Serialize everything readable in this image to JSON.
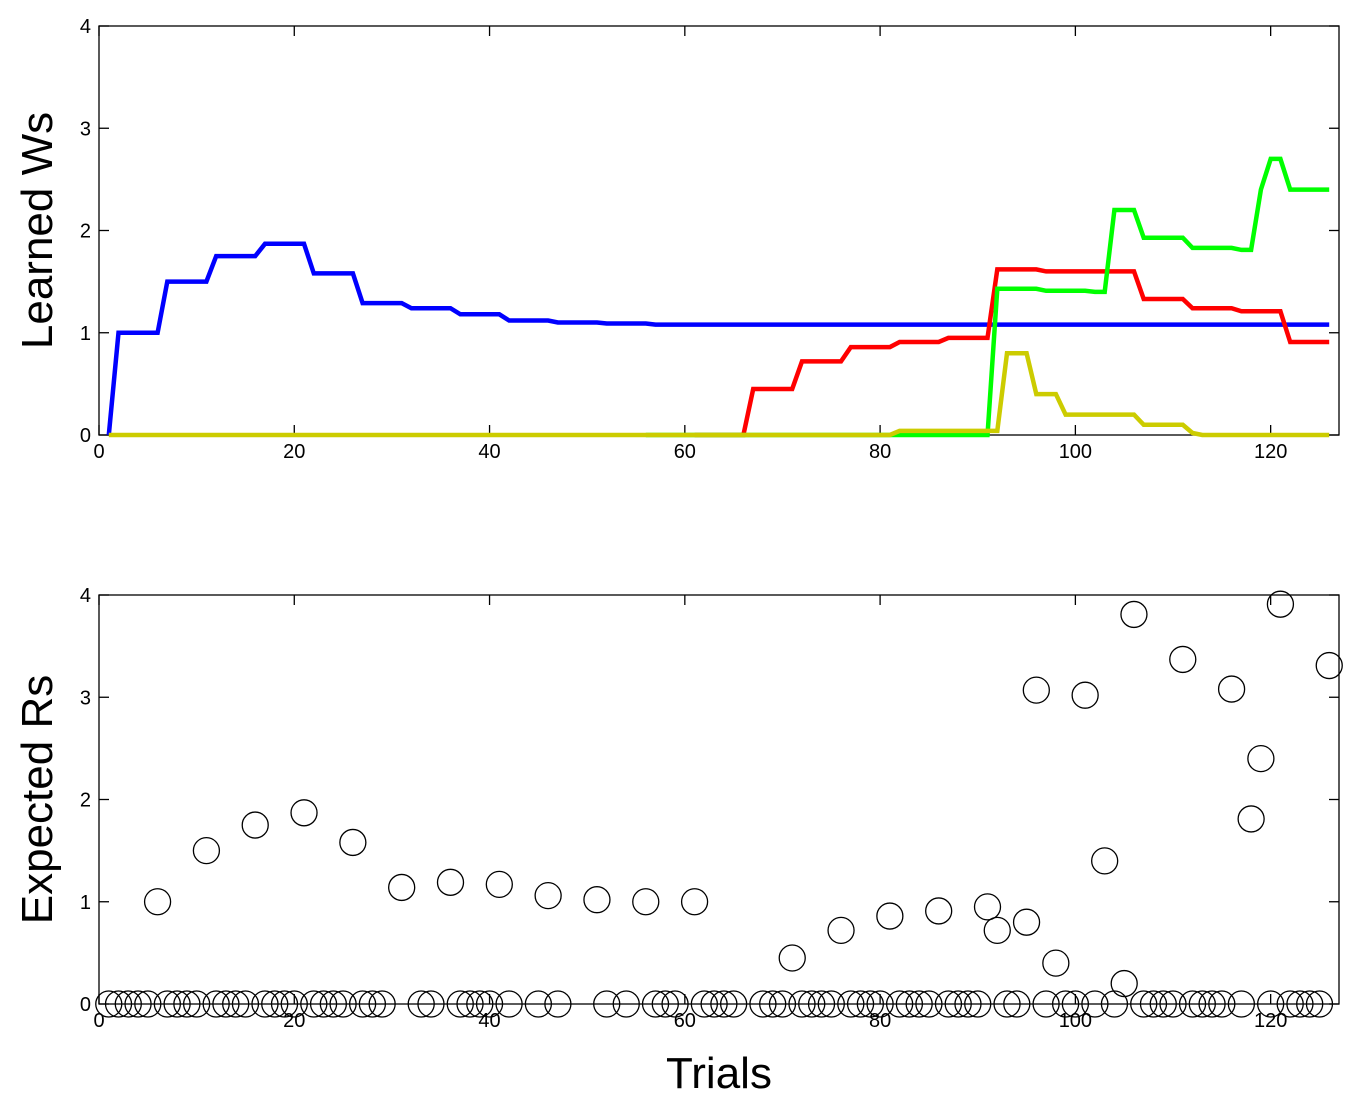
{
  "chart_data": [
    {
      "type": "line",
      "title": "",
      "xlabel": "",
      "ylabel": "Learned Ws",
      "xlim": [
        0,
        127
      ],
      "ylim": [
        0,
        4
      ],
      "xticks": [
        0,
        20,
        40,
        60,
        80,
        100,
        120
      ],
      "yticks": [
        0,
        1,
        2,
        3,
        4
      ],
      "grid": false,
      "legend": "none",
      "series": [
        {
          "color": "#0000ff",
          "points": [
            [
              1,
              0
            ],
            [
              2,
              1
            ],
            [
              6,
              1
            ],
            [
              7,
              1.5
            ],
            [
              11,
              1.5
            ],
            [
              12,
              1.75
            ],
            [
              16,
              1.75
            ],
            [
              17,
              1.87
            ],
            [
              21,
              1.87
            ],
            [
              22,
              1.58
            ],
            [
              26,
              1.58
            ],
            [
              27,
              1.29
            ],
            [
              31,
              1.29
            ],
            [
              32,
              1.24
            ],
            [
              36,
              1.24
            ],
            [
              37,
              1.18
            ],
            [
              41,
              1.18
            ],
            [
              42,
              1.12
            ],
            [
              46,
              1.12
            ],
            [
              47,
              1.1
            ],
            [
              51,
              1.1
            ],
            [
              52,
              1.09
            ],
            [
              56,
              1.09
            ],
            [
              57,
              1.08
            ],
            [
              126,
              1.08
            ]
          ]
        },
        {
          "color": "#ff0000",
          "points": [
            [
              61,
              0
            ],
            [
              66,
              0
            ],
            [
              67,
              0.45
            ],
            [
              71,
              0.45
            ],
            [
              72,
              0.72
            ],
            [
              76,
              0.72
            ],
            [
              77,
              0.86
            ],
            [
              81,
              0.86
            ],
            [
              82,
              0.91
            ],
            [
              86,
              0.91
            ],
            [
              87,
              0.95
            ],
            [
              91,
              0.95
            ],
            [
              92,
              1.62
            ],
            [
              96,
              1.62
            ],
            [
              97,
              1.6
            ],
            [
              105,
              1.6
            ],
            [
              106,
              1.6
            ],
            [
              107,
              1.33
            ],
            [
              111,
              1.33
            ],
            [
              112,
              1.24
            ],
            [
              116,
              1.24
            ],
            [
              117,
              1.21
            ],
            [
              121,
              1.21
            ],
            [
              122,
              0.91
            ],
            [
              126,
              0.91
            ]
          ]
        },
        {
          "color": "#00ff00",
          "points": [
            [
              56,
              0
            ],
            [
              56.4,
              0
            ],
            [
              61,
              0
            ],
            [
              91,
              0
            ],
            [
              92,
              1.43
            ],
            [
              96,
              1.43
            ],
            [
              97,
              1.41
            ],
            [
              101,
              1.41
            ],
            [
              102,
              1.4
            ],
            [
              103,
              1.4
            ],
            [
              104,
              2.2
            ],
            [
              106,
              2.2
            ],
            [
              107,
              1.93
            ],
            [
              111,
              1.93
            ],
            [
              112,
              1.83
            ],
            [
              116,
              1.83
            ],
            [
              117,
              1.81
            ],
            [
              118,
              1.81
            ],
            [
              119,
              2.4
            ],
            [
              120,
              2.7
            ],
            [
              121,
              2.7
            ],
            [
              122,
              2.4
            ],
            [
              126,
              2.4
            ]
          ]
        },
        {
          "color": "#cccc00",
          "points": [
            [
              1,
              0
            ],
            [
              51,
              0
            ],
            [
              67,
              0
            ],
            [
              81,
              0
            ],
            [
              82,
              0.04
            ],
            [
              91,
              0.04
            ],
            [
              92,
              0.04
            ],
            [
              93,
              0.8
            ],
            [
              95,
              0.8
            ],
            [
              96,
              0.4
            ],
            [
              98,
              0.4
            ],
            [
              99,
              0.2
            ],
            [
              100,
              0.2
            ],
            [
              106,
              0.2
            ],
            [
              107,
              0.1
            ],
            [
              111,
              0.1
            ],
            [
              112,
              0.02
            ],
            [
              113,
              0
            ],
            [
              126,
              0
            ]
          ]
        }
      ]
    },
    {
      "type": "scatter",
      "title": "",
      "xlabel": "Trials",
      "ylabel": "Expected Rs",
      "xlim": [
        0,
        127
      ],
      "ylim": [
        0,
        4
      ],
      "xticks": [
        0,
        20,
        40,
        60,
        80,
        100,
        120
      ],
      "yticks": [
        0,
        1,
        2,
        3,
        4
      ],
      "grid": false,
      "legend": "none",
      "marker": "open-circle",
      "series": [
        {
          "color": "#000000",
          "points": [
            [
              1,
              0
            ],
            [
              2,
              0
            ],
            [
              3,
              0
            ],
            [
              4,
              0
            ],
            [
              5,
              0
            ],
            [
              6,
              1
            ],
            [
              7,
              0
            ],
            [
              8,
              0
            ],
            [
              9,
              0
            ],
            [
              10,
              0
            ],
            [
              11,
              1.5
            ],
            [
              12,
              0
            ],
            [
              13,
              0
            ],
            [
              14,
              0
            ],
            [
              15,
              0
            ],
            [
              16,
              1.75
            ],
            [
              17,
              0
            ],
            [
              18,
              0
            ],
            [
              19,
              0
            ],
            [
              20,
              0
            ],
            [
              21,
              1.87
            ],
            [
              22,
              0
            ],
            [
              23,
              0
            ],
            [
              24,
              0
            ],
            [
              25,
              0
            ],
            [
              26,
              1.58
            ],
            [
              27,
              0
            ],
            [
              28,
              0
            ],
            [
              29,
              0
            ],
            [
              31,
              1.14
            ],
            [
              33,
              0
            ],
            [
              34,
              0
            ],
            [
              36,
              1.19
            ],
            [
              37,
              0
            ],
            [
              38,
              0
            ],
            [
              39,
              0
            ],
            [
              40,
              0
            ],
            [
              41,
              1.17
            ],
            [
              42,
              0
            ],
            [
              45,
              0
            ],
            [
              46,
              1.06
            ],
            [
              47,
              0
            ],
            [
              51,
              1.02
            ],
            [
              52,
              0
            ],
            [
              54,
              0
            ],
            [
              56,
              1.0
            ],
            [
              57,
              0
            ],
            [
              58,
              0
            ],
            [
              59,
              0
            ],
            [
              61,
              1.0
            ],
            [
              62,
              0
            ],
            [
              63,
              0
            ],
            [
              64,
              0
            ],
            [
              65,
              0
            ],
            [
              68,
              0
            ],
            [
              69,
              0
            ],
            [
              70,
              0
            ],
            [
              71,
              0.45
            ],
            [
              72,
              0
            ],
            [
              73,
              0
            ],
            [
              74,
              0
            ],
            [
              75,
              0
            ],
            [
              76,
              0.72
            ],
            [
              77,
              0
            ],
            [
              78,
              0
            ],
            [
              79,
              0
            ],
            [
              80,
              0
            ],
            [
              81,
              0.86
            ],
            [
              82,
              0
            ],
            [
              83,
              0
            ],
            [
              84,
              0
            ],
            [
              85,
              0
            ],
            [
              86,
              0.91
            ],
            [
              87,
              0
            ],
            [
              88,
              0
            ],
            [
              89,
              0
            ],
            [
              90,
              0
            ],
            [
              91,
              0.95
            ],
            [
              92,
              0.72
            ],
            [
              93,
              0
            ],
            [
              94,
              0
            ],
            [
              95,
              0.8
            ],
            [
              96,
              3.07
            ],
            [
              97,
              0
            ],
            [
              98,
              0.4
            ],
            [
              99,
              0
            ],
            [
              100,
              0
            ],
            [
              101,
              3.02
            ],
            [
              102,
              0
            ],
            [
              103,
              1.4
            ],
            [
              104,
              0
            ],
            [
              105,
              0.2
            ],
            [
              106,
              3.81
            ],
            [
              107,
              0
            ],
            [
              108,
              0
            ],
            [
              109,
              0
            ],
            [
              110,
              0
            ],
            [
              111,
              3.37
            ],
            [
              112,
              0
            ],
            [
              113,
              0
            ],
            [
              114,
              0
            ],
            [
              115,
              0
            ],
            [
              116,
              3.08
            ],
            [
              117,
              0
            ],
            [
              118,
              1.81
            ],
            [
              119,
              2.4
            ],
            [
              120,
              0
            ],
            [
              121,
              3.91
            ],
            [
              122,
              0
            ],
            [
              123,
              0
            ],
            [
              124,
              0
            ],
            [
              125,
              0
            ],
            [
              126,
              3.31
            ]
          ]
        }
      ]
    }
  ]
}
